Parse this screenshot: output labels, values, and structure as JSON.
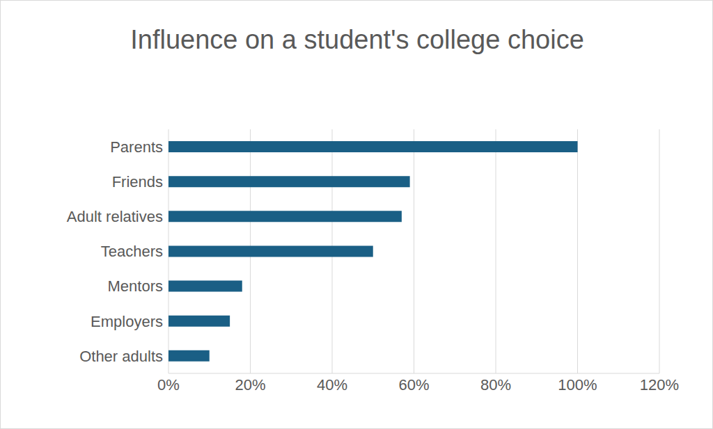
{
  "chart_data": {
    "type": "bar",
    "title": "Influence on a student's college choice",
    "orientation": "horizontal",
    "categories": [
      "Parents",
      "Friends",
      "Adult relatives",
      "Teachers",
      "Mentors",
      "Employers",
      "Other adults"
    ],
    "values": [
      100,
      59,
      57,
      50,
      18,
      15,
      10
    ],
    "color": "#1a5f85",
    "xlim": [
      0,
      120
    ],
    "xticks": [
      {
        "value": 0,
        "label": "0%"
      },
      {
        "value": 20,
        "label": "20%"
      },
      {
        "value": 40,
        "label": "40%"
      },
      {
        "value": 60,
        "label": "60%"
      },
      {
        "value": 80,
        "label": "80%"
      },
      {
        "value": 100,
        "label": "100%"
      },
      {
        "value": 120,
        "label": "120%"
      }
    ],
    "grid": true
  }
}
